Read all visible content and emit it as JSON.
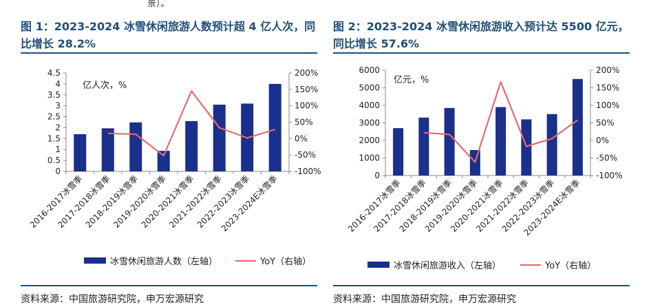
{
  "top_snippet": "景）。",
  "figures": [
    {
      "title": "图 1：2023-2024 冰雪休闲旅游人数预计超 4 亿人次，同比增长 28.2%",
      "source": "资料来源：中国旅游研究院，申万宏源研究",
      "chart_data": {
        "type": "bar",
        "categories": [
          "2016-2017冰雪季",
          "2017-2018冰雪季",
          "2018-2019冰雪季",
          "2019-2020冰雪季",
          "2020-2021冰雪季",
          "2021-2022冰雪季",
          "2022-2023冰雪季",
          "2023-2024E冰雪季"
        ],
        "unit_label": "亿人次，%",
        "series": [
          {
            "name": "冰雪休闲旅游人数（左轴）",
            "type": "bar",
            "axis": "left",
            "color": "#1b2f8c",
            "values": [
              1.7,
              1.97,
              2.24,
              0.94,
              2.3,
              3.05,
              3.1,
              4.0
            ]
          },
          {
            "name": "YoY（右轴）",
            "type": "line",
            "axis": "right",
            "color": "#e46c6c",
            "values": [
              null,
              16,
              13,
              -52,
              145,
              33,
              2,
              28
            ]
          }
        ],
        "left_axis": {
          "ylim": [
            0,
            4.5
          ],
          "ticks": [
            "0",
            "0.5",
            "1",
            "1.5",
            "2",
            "2.5",
            "3",
            "3.5",
            "4",
            "4.5"
          ]
        },
        "right_axis": {
          "ylim": [
            -100,
            200
          ],
          "ticks": [
            "-100%",
            "-50%",
            "0%",
            "50%",
            "100%",
            "150%",
            "200%"
          ]
        },
        "legend_position": "bottom"
      }
    },
    {
      "title": "图 2：2023-2024 冰雪休闲旅游收入预计达 5500 亿元，同比增长 57.6%",
      "source": "资料来源：中国旅游研究院，申万宏源研究",
      "chart_data": {
        "type": "bar",
        "categories": [
          "2016-2017冰雪季",
          "2017-2018冰雪季",
          "2018-2019冰雪季",
          "2019-2020冰雪季",
          "2020-2021冰雪季",
          "2021-2022冰雪季",
          "2022-2023冰雪季",
          "2023-2024E冰雪季"
        ],
        "unit_label": "亿元，%",
        "series": [
          {
            "name": "冰雪休闲旅游收入（左轴）",
            "type": "bar",
            "axis": "left",
            "color": "#1b2f8c",
            "values": [
              2700,
              3300,
              3850,
              1450,
              3900,
              3200,
              3500,
              5500
            ]
          },
          {
            "name": "YoY（右轴）",
            "type": "line",
            "axis": "right",
            "color": "#e46c6c",
            "values": [
              null,
              22,
              17,
              -62,
              167,
              -17,
              5,
              58
            ]
          }
        ],
        "left_axis": {
          "ylim": [
            0,
            6000
          ],
          "ticks": [
            "0",
            "1000",
            "2000",
            "3000",
            "4000",
            "5000",
            "6000"
          ]
        },
        "right_axis": {
          "ylim": [
            -100,
            200
          ],
          "ticks": [
            "-100%",
            "-50%",
            "0%",
            "50%",
            "100%",
            "150%",
            "200%"
          ]
        },
        "legend_position": "bottom"
      }
    }
  ]
}
